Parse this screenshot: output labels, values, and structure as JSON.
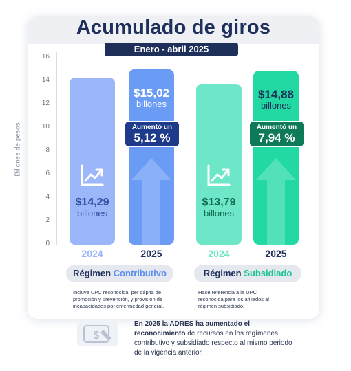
{
  "header": {
    "title": "Acumulado de giros",
    "period": "Enero - abril 2025"
  },
  "colors": {
    "navy": "#1e2f5a",
    "blue_light": "#9bb6f9",
    "blue_dark": "#6a9cf5",
    "blue_text": "#2f4d9e",
    "green_light": "#6ee6c8",
    "green_dark": "#22d9a4",
    "green_text": "#0f6e53",
    "badge_blue": "#1d3b8a",
    "badge_green": "#0e7a5a"
  },
  "chart_data": {
    "type": "bar",
    "ylabel": "Billones de pesos",
    "ylim": [
      0,
      16
    ],
    "yticks": [
      "0",
      "2",
      "4",
      "6",
      "8",
      "10",
      "12",
      "14",
      "16"
    ],
    "groups": [
      {
        "name": "Régimen Contributivo",
        "bars": [
          {
            "year": "2024",
            "value": 14.29,
            "label": "$14,29",
            "unit": "billones"
          },
          {
            "year": "2025",
            "value": 15.02,
            "label": "$15,02",
            "unit": "billones",
            "badge_line1": "Aumentó un",
            "badge_line2": "5,12 %"
          }
        ]
      },
      {
        "name": "Régimen Subsidiado",
        "bars": [
          {
            "year": "2024",
            "value": 13.79,
            "label": "$13,79",
            "unit": "billones"
          },
          {
            "year": "2025",
            "value": 14.88,
            "label": "$14,88",
            "unit": "billones",
            "badge_line1": "Aumentó un",
            "badge_line2": "7,94 %"
          }
        ]
      }
    ]
  },
  "pills": {
    "contributivo_a": "Régimen ",
    "contributivo_b": "Contributivo",
    "subsidiado_a": "Régimen ",
    "subsidiado_b": "Subsidiado"
  },
  "notes": {
    "contributivo": "Incluye UPC reconocida, per cápita de promoción y prevención, y provisión de incapacidades por enfermedad general.",
    "subsidiado": "Hace referencia a la UPC reconocida para los afiliados al régimen subsidiado."
  },
  "footer": {
    "bold": "En 2025 la ADRES ha aumentado el reconocimiento",
    "rest": "de recursos en los regímenes contributivo y subsidiado respecto al mismo periodo de la vigencia anterior."
  },
  "icons": {
    "chart": "chart-growth-icon",
    "money": "money-note-icon"
  }
}
